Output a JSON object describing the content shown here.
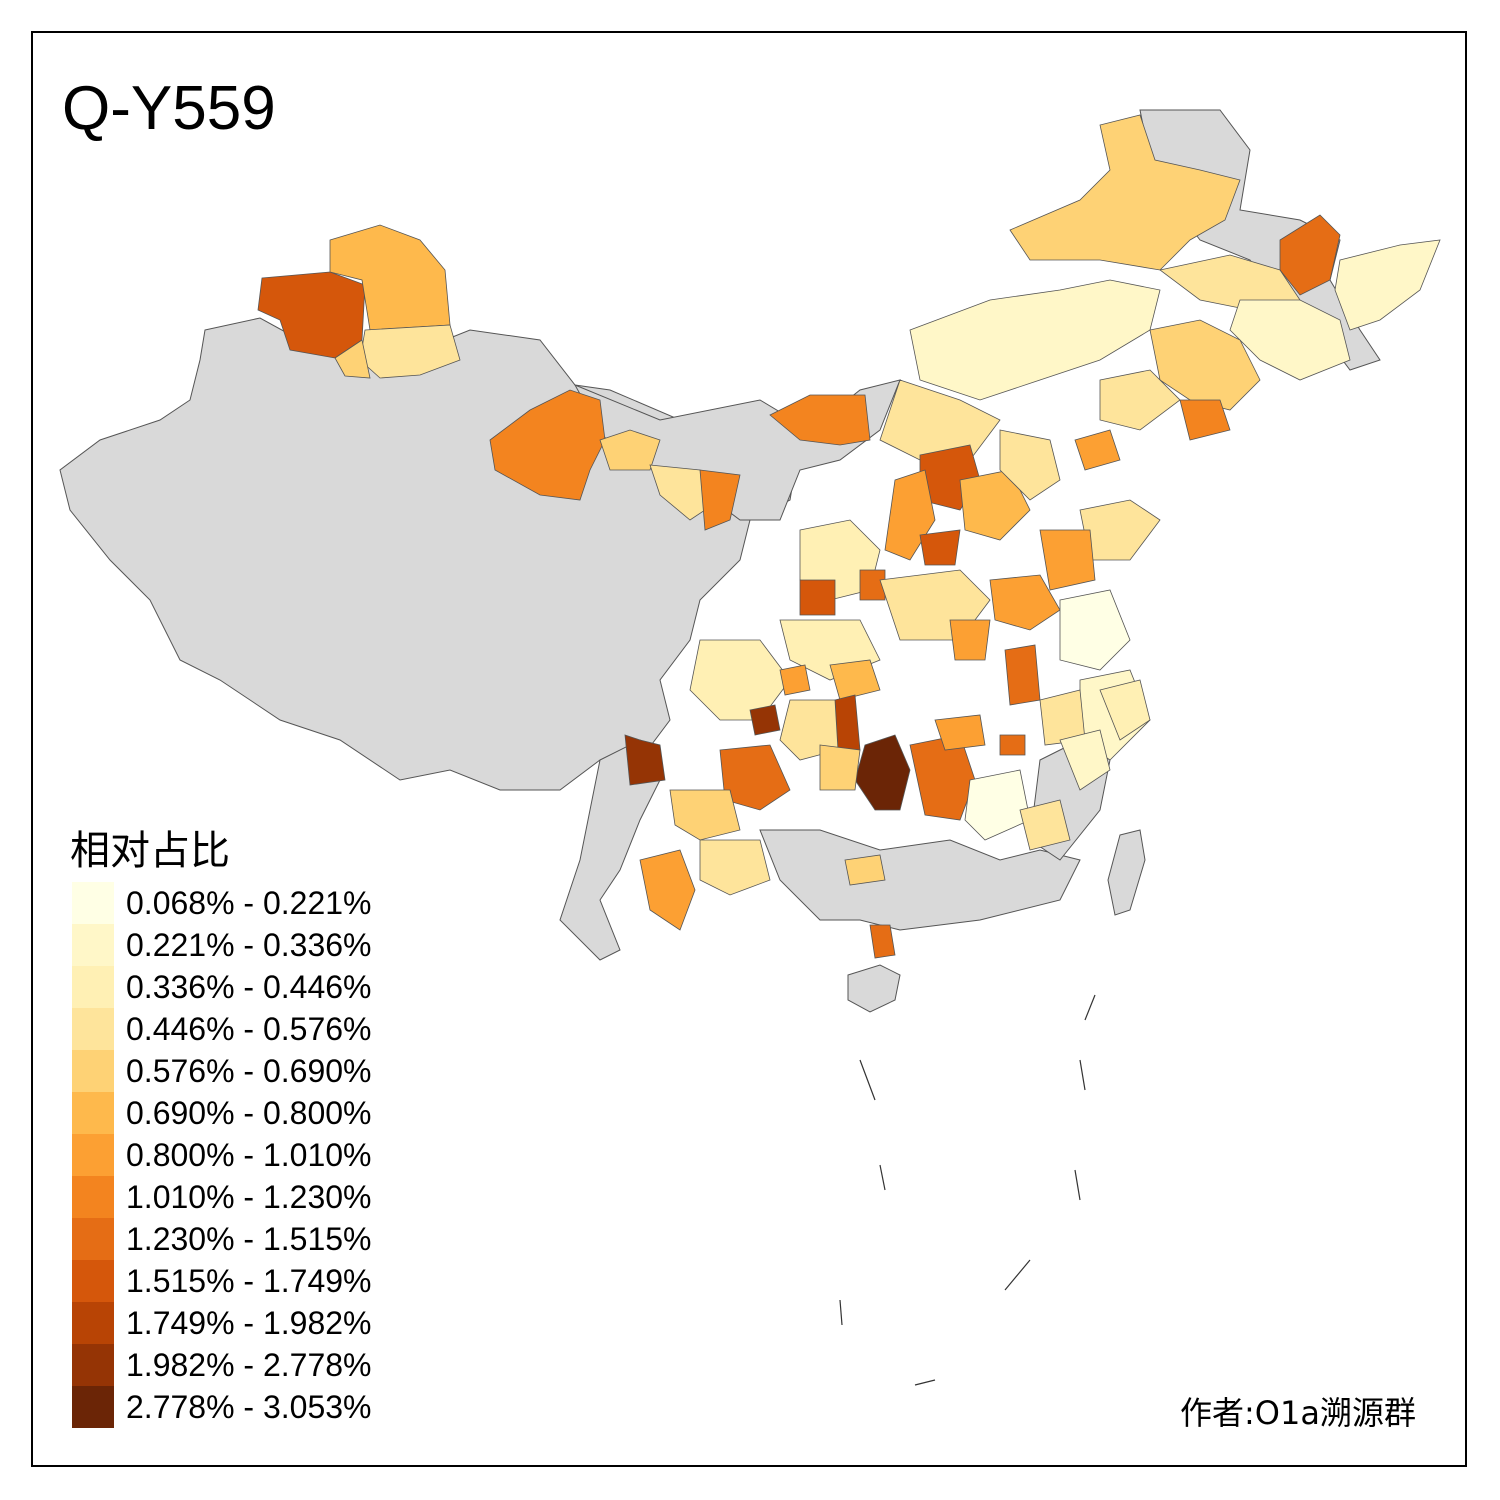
{
  "title": "Q-Y559",
  "legend": {
    "title": "相对占比",
    "items": [
      {
        "label": "0.068% - 0.221%",
        "color": "#ffffe5"
      },
      {
        "label": "0.221% - 0.336%",
        "color": "#fff7c8"
      },
      {
        "label": "0.336% - 0.446%",
        "color": "#fff0b4"
      },
      {
        "label": "0.446% - 0.576%",
        "color": "#fee49b"
      },
      {
        "label": "0.576% - 0.690%",
        "color": "#fed275"
      },
      {
        "label": "0.690% - 0.800%",
        "color": "#feb94c"
      },
      {
        "label": "0.800% - 1.010%",
        "color": "#fca033"
      },
      {
        "label": "1.010% - 1.230%",
        "color": "#f3841f"
      },
      {
        "label": "1.230% - 1.515%",
        "color": "#e56d15"
      },
      {
        "label": "1.515% - 1.749%",
        "color": "#d5570b"
      },
      {
        "label": "1.749% - 1.982%",
        "color": "#b84405"
      },
      {
        "label": "1.982% - 2.778%",
        "color": "#953405"
      },
      {
        "label": "2.778% - 3.053%",
        "color": "#6b2506"
      }
    ]
  },
  "author": "作者:O1a溯源群",
  "map": {
    "no_data_color": "#d9d9d9",
    "border_color": "#555555"
  }
}
